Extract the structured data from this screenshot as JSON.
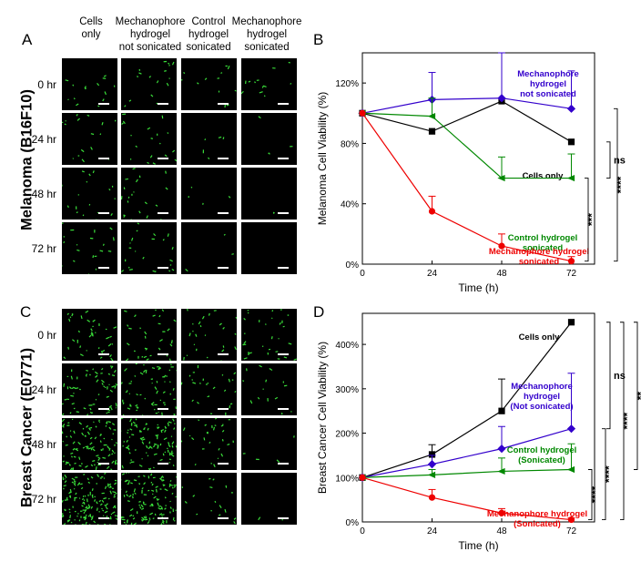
{
  "panels": {
    "A": {
      "letter": "A",
      "col_headers": [
        "Cells\nonly",
        "Mechanophore\nhydrogel\nnot sonicated",
        "Control\nhydrogel\nsonicated",
        "Mechanophore\nhydrogel\nsonicated"
      ],
      "row_labels": [
        "0 hr",
        "24 hr",
        "48 hr",
        "72 hr"
      ],
      "side_label": "Melanoma (B16F10)",
      "cell_density": [
        [
          0.35,
          0.4,
          0.3,
          0.3
        ],
        [
          0.4,
          0.45,
          0.12,
          0.1
        ],
        [
          0.45,
          0.5,
          0.1,
          0.04
        ],
        [
          0.5,
          0.55,
          0.07,
          0.0
        ]
      ]
    },
    "C": {
      "letter": "C",
      "row_labels": [
        "0 hr",
        "24 hr",
        "48 hr",
        "72 hr"
      ],
      "side_label": "Breast Cancer (E0771)",
      "cell_density": [
        [
          0.9,
          0.8,
          0.6,
          0.7
        ],
        [
          1.6,
          1.6,
          0.6,
          0.35
        ],
        [
          2.6,
          2.3,
          0.7,
          0.1
        ],
        [
          3.6,
          3.0,
          0.4,
          0.04
        ]
      ]
    },
    "B": {
      "letter": "B"
    },
    "D": {
      "letter": "D"
    }
  },
  "chart_data": [
    {
      "type": "line",
      "panel": "B",
      "xlabel": "Time (h)",
      "ylabel": "Melanoma Cell Viability (%)",
      "x": [
        0,
        24,
        48,
        72
      ],
      "xlim": [
        0,
        80
      ],
      "ylim": [
        0,
        140
      ],
      "yticks": [
        0,
        40,
        80,
        120
      ],
      "ytick_labels": [
        "0%",
        "40%",
        "80%",
        "120%"
      ],
      "xticks": [
        0,
        24,
        48,
        72
      ],
      "grid": false,
      "series": [
        {
          "name": "Cells only",
          "label_lines": [
            "Cells only"
          ],
          "color": "#000000",
          "marker": "square",
          "values": [
            100,
            88,
            108,
            81
          ],
          "errors": [
            0,
            0,
            0,
            0
          ]
        },
        {
          "name": "Mechanophore hydrogel not sonicated",
          "label_lines": [
            "Mechanophore",
            "hydrogel",
            "not sonicated"
          ],
          "color": "#3300cc",
          "marker": "diamond",
          "values": [
            100,
            109,
            110,
            103
          ],
          "errors": [
            0,
            18,
            30,
            25
          ]
        },
        {
          "name": "Control hydrogel sonicated",
          "label_lines": [
            "Control hydrogel",
            "sonicated"
          ],
          "color": "#008800",
          "marker": "triangle-left",
          "values": [
            100,
            98,
            57,
            57
          ],
          "errors": [
            0,
            12,
            14,
            16
          ]
        },
        {
          "name": "Mechanophore hydrogel sonicated",
          "label_lines": [
            "Mechanophore hydrogel",
            "sonicated"
          ],
          "color": "#ee0000",
          "marker": "circle",
          "values": [
            100,
            35,
            12,
            2
          ],
          "errors": [
            0,
            10,
            8,
            3
          ]
        }
      ],
      "significance": [
        {
          "label": "ns",
          "from": 81,
          "to": 57
        },
        {
          "label": "***",
          "from": 57,
          "to": 2
        },
        {
          "label": "****",
          "from": 103,
          "to": 2
        }
      ]
    },
    {
      "type": "line",
      "panel": "D",
      "xlabel": "Time (h)",
      "ylabel": "Breast Cancer Cell Viability (%)",
      "x": [
        0,
        24,
        48,
        72
      ],
      "xlim": [
        0,
        80
      ],
      "ylim": [
        0,
        470
      ],
      "yticks": [
        0,
        100,
        200,
        300,
        400
      ],
      "ytick_labels": [
        "0%",
        "100%",
        "200%",
        "300%",
        "400%"
      ],
      "xticks": [
        0,
        24,
        48,
        72
      ],
      "grid": false,
      "series": [
        {
          "name": "Cells only",
          "label_lines": [
            "Cells only"
          ],
          "color": "#000000",
          "marker": "square",
          "values": [
            100,
            152,
            250,
            450
          ],
          "errors": [
            0,
            22,
            72,
            0
          ]
        },
        {
          "name": "Mechanophore hydrogel (Not sonicated)",
          "label_lines": [
            "Mechanophore",
            "hydrogel",
            "(Not sonicated)"
          ],
          "color": "#3300cc",
          "marker": "diamond",
          "values": [
            100,
            130,
            165,
            210
          ],
          "errors": [
            0,
            20,
            50,
            125
          ]
        },
        {
          "name": "Control hydrogel (Sonicated)",
          "label_lines": [
            "Control hydrogel",
            "(Sonicated)"
          ],
          "color": "#008800",
          "marker": "triangle-left",
          "values": [
            100,
            106,
            114,
            118
          ],
          "errors": [
            0,
            12,
            30,
            58
          ]
        },
        {
          "name": "Mechanophore hydrogel (Sonicated)",
          "label_lines": [
            "Mechanophore hydrogel",
            "(Sonicated)"
          ],
          "color": "#ee0000",
          "marker": "circle",
          "values": [
            100,
            55,
            20,
            5
          ],
          "errors": [
            0,
            18,
            10,
            4
          ]
        }
      ],
      "significance": [
        {
          "label": "ns",
          "from": 450,
          "to": 210
        },
        {
          "label": "**",
          "from": 450,
          "to": 118
        },
        {
          "label": "****",
          "from": 450,
          "to": 5
        },
        {
          "label": "****",
          "from": 210,
          "to": 5
        },
        {
          "label": "****",
          "from": 118,
          "to": 5
        }
      ]
    }
  ]
}
